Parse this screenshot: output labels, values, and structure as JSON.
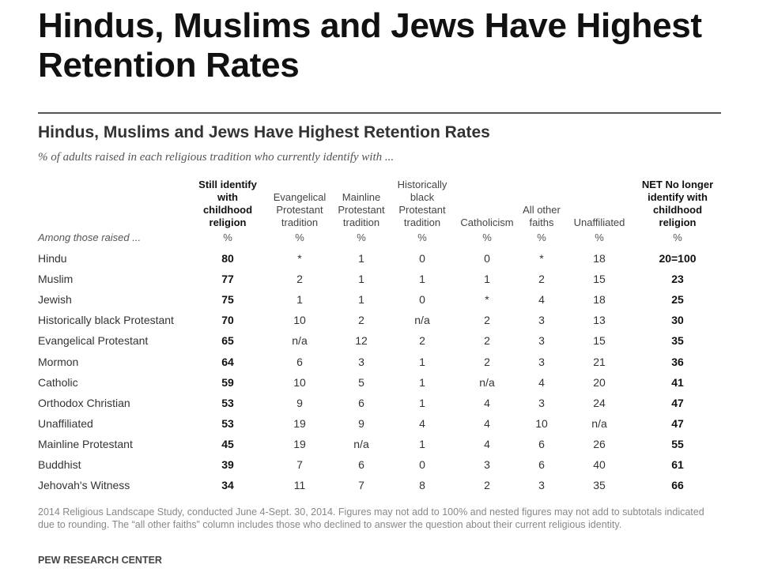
{
  "slide_title": "Hindus, Muslims and Jews Have Highest Retention Rates",
  "chart_data": {
    "type": "table",
    "title": "Hindus, Muslims and Jews Have Highest Retention Rates",
    "subtitle": "% of adults raised in each religious tradition who currently identify with ...",
    "row_header": "Among those raised ...",
    "columns": [
      "Still identify with childhood religion",
      "Evangelical Protestant tradition",
      "Mainline Protestant tradition",
      "Historically black Protestant tradition",
      "Catholicism",
      "All other faiths",
      "Unaffiliated",
      "NET No longer identify with childhood religion"
    ],
    "units": [
      "%",
      "%",
      "%",
      "%",
      "%",
      "%",
      "%",
      "%"
    ],
    "rows": [
      {
        "label": "Hindu",
        "values": [
          "80",
          "*",
          "1",
          "0",
          "0",
          "*",
          "18",
          "20=100"
        ]
      },
      {
        "label": "Muslim",
        "values": [
          "77",
          "2",
          "1",
          "1",
          "1",
          "2",
          "15",
          "23"
        ]
      },
      {
        "label": "Jewish",
        "values": [
          "75",
          "1",
          "1",
          "0",
          "*",
          "4",
          "18",
          "25"
        ]
      },
      {
        "label": "Historically black Protestant",
        "values": [
          "70",
          "10",
          "2",
          "n/a",
          "2",
          "3",
          "13",
          "30"
        ]
      },
      {
        "label": "Evangelical Protestant",
        "values": [
          "65",
          "n/a",
          "12",
          "2",
          "2",
          "3",
          "15",
          "35"
        ]
      },
      {
        "label": "Mormon",
        "values": [
          "64",
          "6",
          "3",
          "1",
          "2",
          "3",
          "21",
          "36"
        ]
      },
      {
        "label": "Catholic",
        "values": [
          "59",
          "10",
          "5",
          "1",
          "n/a",
          "4",
          "20",
          "41"
        ]
      },
      {
        "label": "Orthodox Christian",
        "values": [
          "53",
          "9",
          "6",
          "1",
          "4",
          "3",
          "24",
          "47"
        ]
      },
      {
        "label": "Unaffiliated",
        "values": [
          "53",
          "19",
          "9",
          "4",
          "4",
          "10",
          "n/a",
          "47"
        ]
      },
      {
        "label": "Mainline Protestant",
        "values": [
          "45",
          "19",
          "n/a",
          "1",
          "4",
          "6",
          "26",
          "55"
        ]
      },
      {
        "label": "Buddhist",
        "values": [
          "39",
          "7",
          "6",
          "0",
          "3",
          "6",
          "40",
          "61"
        ]
      },
      {
        "label": "Jehovah's Witness",
        "values": [
          "34",
          "11",
          "7",
          "8",
          "2",
          "3",
          "35",
          "66"
        ]
      }
    ],
    "footnote": "2014 Religious Landscape Study, conducted June 4-Sept. 30, 2014. Figures may not add to 100% and nested figures may not add to subtotals indicated due to rounding. The “all other faiths” column includes those who declined to answer the question about their current religious identity.",
    "source": "PEW RESEARCH CENTER"
  }
}
